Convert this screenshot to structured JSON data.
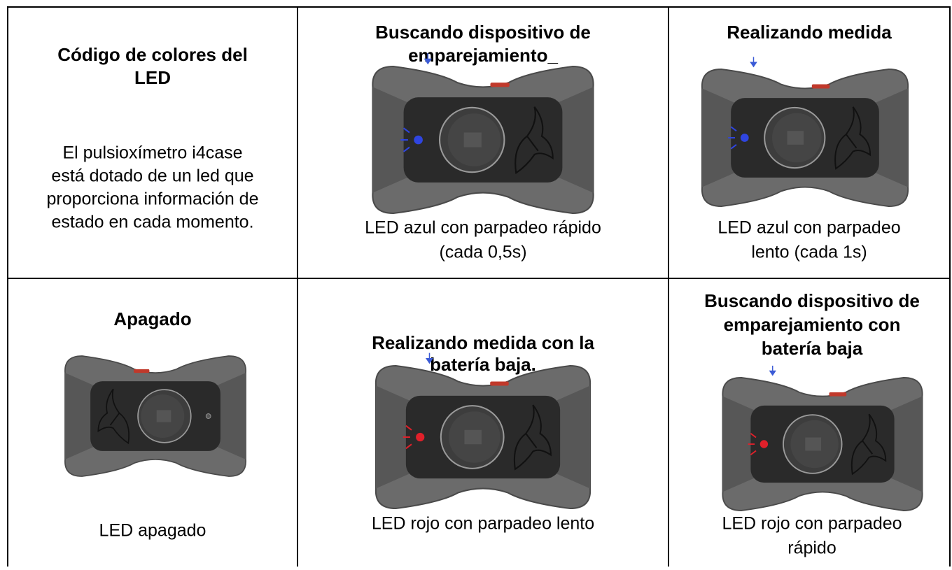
{
  "table": {
    "rows": [
      [
        {
          "title_lines": [
            "Código de colores del",
            "LED"
          ],
          "description_lines": [
            "El pulsioxímetro i4case",
            "está dotado de un led que",
            "proporciona información de",
            "estado en cada momento."
          ]
        },
        {
          "title_lines": [
            "Buscando dispositivo de",
            "emparejamiento_"
          ],
          "led_color": "#2f45e0",
          "caption_lines": [
            "LED azul con parpadeo rápido",
            "(cada 0,5s)"
          ]
        },
        {
          "title_lines": [
            "Realizando medida"
          ],
          "led_color": "#2f45e0",
          "caption_lines": [
            "LED azul con parpadeo",
            "lento (cada 1s)"
          ]
        }
      ],
      [
        {
          "title_lines": [
            "Apagado"
          ],
          "led_color": null,
          "caption_lines": [
            "LED apagado"
          ]
        },
        {
          "title_lines": [
            "Realizando medida con la",
            "batería baja."
          ],
          "led_color": "#e0202a",
          "caption_lines": [
            "LED rojo con parpadeo lento"
          ]
        },
        {
          "title_lines": [
            "Buscando dispositivo de",
            "emparejamiento con",
            "batería baja"
          ],
          "led_color": "#e0202a",
          "caption_lines": [
            "LED rojo con parpadeo",
            "rápido"
          ]
        }
      ]
    ]
  }
}
